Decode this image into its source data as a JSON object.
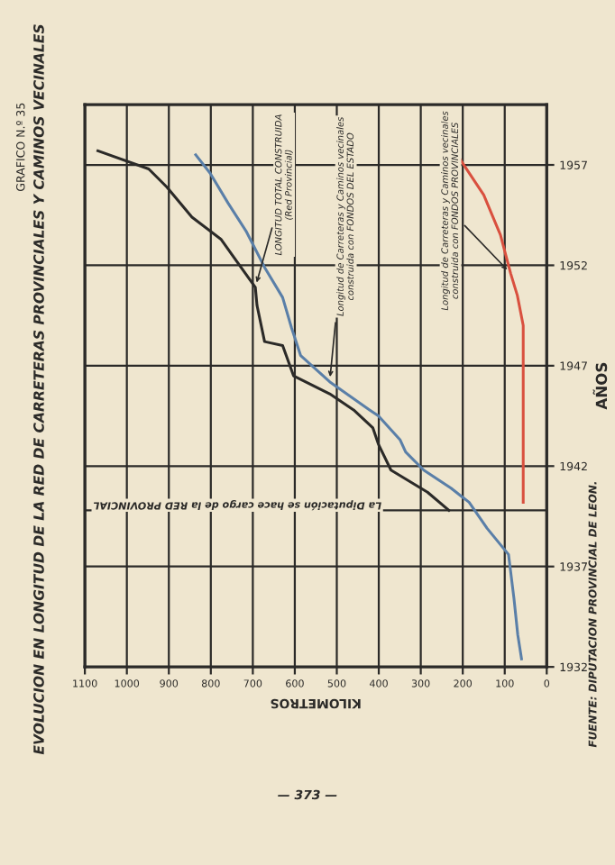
{
  "chart_data": {
    "type": "line",
    "title": "EVOLUCION EN LONGITUD DE LA RED DE CARRETERAS PROVINCIALES Y CAMINOS VECINALES",
    "subtitle": "GRAFICO N.º 35",
    "xlabel": "KILOMETROS",
    "ylabel": "AÑOS",
    "xlim": [
      1100,
      0
    ],
    "xticks": [
      0,
      100,
      200,
      300,
      400,
      500,
      600,
      700,
      800,
      900,
      1000,
      1100
    ],
    "ylim": [
      1932,
      1960
    ],
    "yticks": [
      1932,
      1937,
      1942,
      1947,
      1952,
      1957
    ],
    "grid": true,
    "series": [
      {
        "color": "#2b2a28",
        "x": [
          233,
          284,
          371,
          401,
          414,
          460,
          517,
          603,
          629,
          672,
          690,
          694,
          776,
          845,
          905,
          948,
          1069
        ],
        "values": [
          1939.8,
          1940.7,
          1941.8,
          1943.1,
          1943.9,
          1944.8,
          1945.6,
          1946.5,
          1948,
          1948.2,
          1950,
          1950.9,
          1953.3,
          1954.4,
          1955.9,
          1956.8,
          1957.7
        ]
      },
      {
        "color": "#5a7fa8",
        "x": [
          60,
          69,
          78,
          91,
          142,
          185,
          228,
          293,
          336,
          349,
          401,
          422,
          517,
          586,
          608,
          629,
          672,
          716,
          759,
          802,
          836
        ],
        "values": [
          1932.4,
          1933.6,
          1935.4,
          1937.6,
          1938.9,
          1940.2,
          1940.9,
          1941.8,
          1942.7,
          1943.3,
          1944.5,
          1944.8,
          1946.2,
          1947.5,
          1948.9,
          1950.4,
          1951.9,
          1953.7,
          1955.1,
          1956.6,
          1957.5
        ]
      },
      {
        "color": "#d9503f",
        "x": [
          56,
          56,
          70,
          86,
          110,
          150,
          207
        ],
        "values": [
          1940.2,
          1949,
          1950.5,
          1951.6,
          1953.5,
          1955.5,
          1957.3
        ]
      }
    ],
    "ref_lines": [
      {
        "axis": "y",
        "value": 1939.8,
        "label": "La Diputación se hace cargo de la RED PROVINCIAL",
        "color": "#2b2a28"
      }
    ],
    "annotations": [
      {
        "text": "LONGITUD TOTAL CONSTRUIDA\n(Red Provincial)",
        "x": 694,
        "y": 1950.9
      },
      {
        "text": "Longitud de Carreteras y Caminos vecinales\nconstruida con FONDOS DEL ESTADO",
        "x": 517,
        "y": 1946.2
      },
      {
        "text": "Longitud de Carreteras y Caminos vecinales\nconstruida con FONDOS PROVINCIALES",
        "x": 86,
        "y": 1951.6
      },
      "FUENTE: DIPUTACION PROVINCIAL DE LEON.",
      "— 373 —"
    ]
  }
}
